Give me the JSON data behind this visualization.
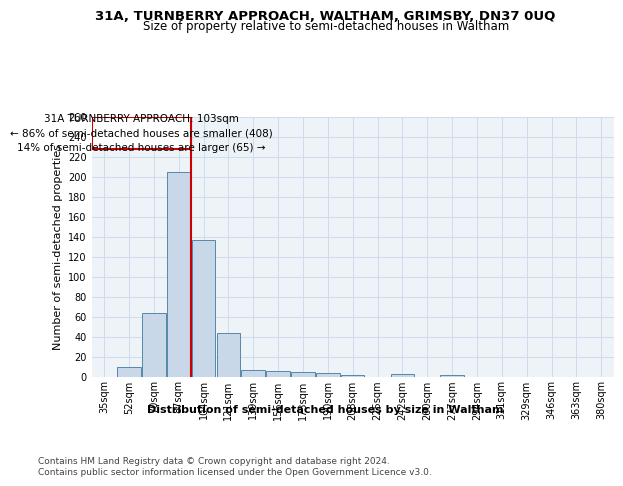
{
  "title_line1": "31A, TURNBERRY APPROACH, WALTHAM, GRIMSBY, DN37 0UQ",
  "title_line2": "Size of property relative to semi-detached houses in Waltham",
  "xlabel": "Distribution of semi-detached houses by size in Waltham",
  "ylabel": "Number of semi-detached properties",
  "footer1": "Contains HM Land Registry data © Crown copyright and database right 2024.",
  "footer2": "Contains public sector information licensed under the Open Government Licence v3.0.",
  "annotation_line1": "31A TURNBERRY APPROACH: 103sqm",
  "annotation_line2": "← 86% of semi-detached houses are smaller (408)",
  "annotation_line3": "14% of semi-detached houses are larger (65) →",
  "bar_labels": [
    "35sqm",
    "52sqm",
    "70sqm",
    "87sqm",
    "104sqm",
    "121sqm",
    "139sqm",
    "156sqm",
    "173sqm",
    "190sqm",
    "208sqm",
    "225sqm",
    "242sqm",
    "260sqm",
    "277sqm",
    "294sqm",
    "311sqm",
    "329sqm",
    "346sqm",
    "363sqm",
    "380sqm"
  ],
  "bar_values": [
    0,
    10,
    64,
    205,
    137,
    44,
    7,
    6,
    5,
    4,
    2,
    0,
    3,
    0,
    2,
    0,
    0,
    0,
    0,
    0,
    0
  ],
  "bar_color": "#c8d8e8",
  "bar_edge_color": "#5588aa",
  "red_line_index": 4,
  "red_line_color": "#cc0000",
  "annotation_box_color": "#cc0000",
  "ylim": [
    0,
    260
  ],
  "yticks": [
    0,
    20,
    40,
    60,
    80,
    100,
    120,
    140,
    160,
    180,
    200,
    220,
    240,
    260
  ],
  "grid_color": "#ccddee",
  "background_color": "#eef3f8",
  "fig_background": "#ffffff",
  "title_fontsize": 9.5,
  "subtitle_fontsize": 8.5,
  "axis_label_fontsize": 8,
  "tick_fontsize": 7,
  "annotation_fontsize": 7.5,
  "footer_fontsize": 6.5
}
